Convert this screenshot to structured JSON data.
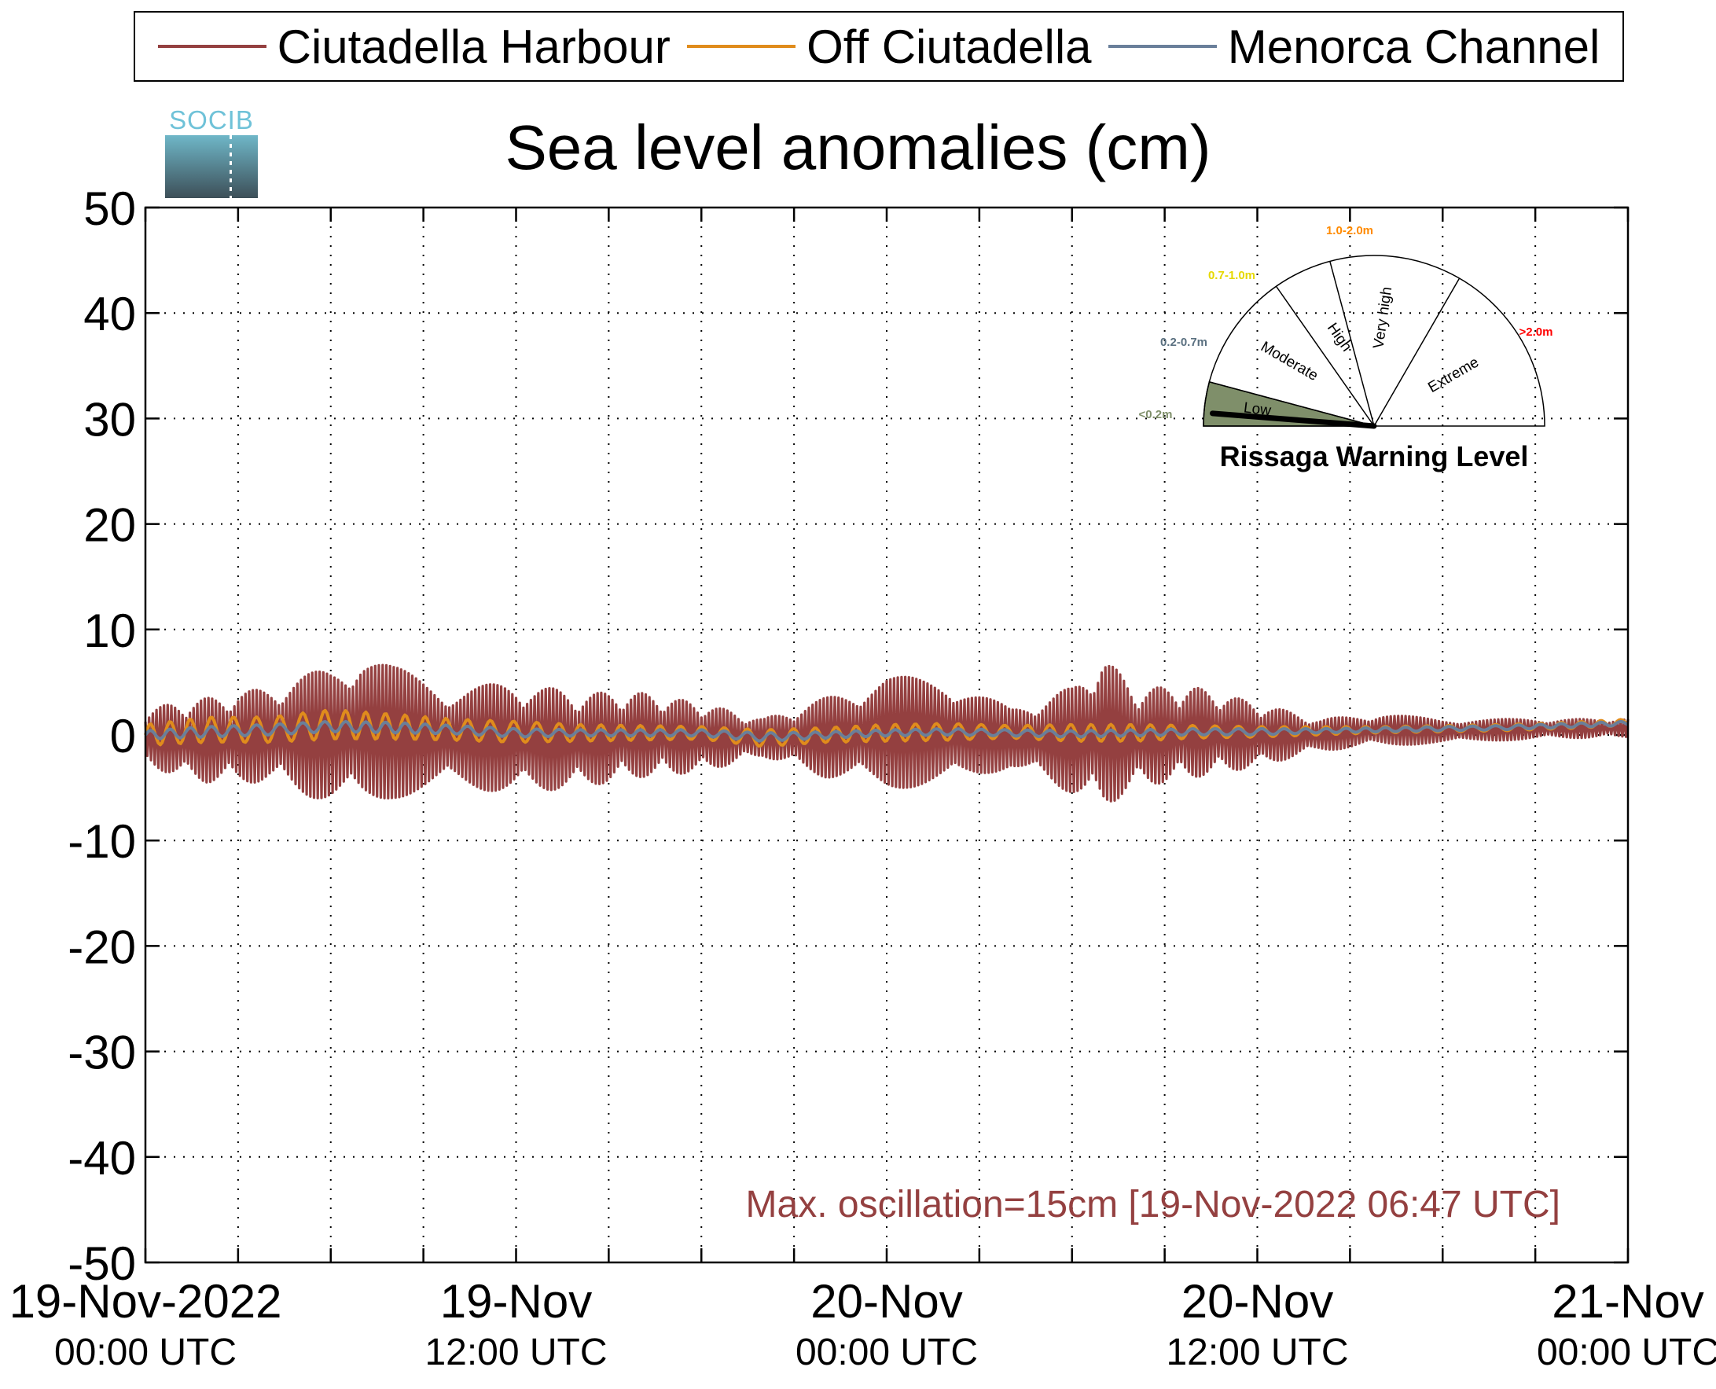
{
  "legend": {
    "items": [
      {
        "label": "Ciutadella Harbour",
        "color": "#944040"
      },
      {
        "label": "Off Ciutadella",
        "color": "#e08c1c"
      },
      {
        "label": "Menorca Channel",
        "color": "#6a7f9a"
      }
    ]
  },
  "logo": {
    "text": "SOCIB"
  },
  "annotation": {
    "text": "Max. oscillation=15cm [19-Nov-2022 06:47 UTC]",
    "color": "#944040"
  },
  "gauge": {
    "title": "Rissaga Warning Level",
    "current_level": "Low",
    "levels": [
      {
        "name": "Low",
        "range": "<0.2m",
        "color": "#7f8f6a"
      },
      {
        "name": "Moderate",
        "range": "0.2-0.7m",
        "color": "#5a7080"
      },
      {
        "name": "High",
        "range": "0.7-1.0m",
        "color": "#e6d800"
      },
      {
        "name": "Very high",
        "range": "1.0-2.0m",
        "color": "#ff8a00"
      },
      {
        "name": "Extreme",
        "range": ">2.0m",
        "color": "#ff0000"
      }
    ]
  },
  "chart_data": {
    "type": "line",
    "title": "Sea level anomalies (cm)",
    "xlabel": "",
    "ylabel": "",
    "ylim": [
      -50,
      50
    ],
    "yticks": [
      "50",
      "40",
      "30",
      "20",
      "10",
      "0",
      "-10",
      "-20",
      "-30",
      "-40",
      "-50"
    ],
    "xlim": [
      "19-Nov-2022 00:00 UTC",
      "21-Nov-2022 00:00 UTC"
    ],
    "xtick_labels": [
      {
        "line1": "19-Nov-2022",
        "line2": "00:00 UTC"
      },
      {
        "line1": "19-Nov",
        "line2": "12:00 UTC"
      },
      {
        "line1": "20-Nov",
        "line2": "00:00 UTC"
      },
      {
        "line1": "20-Nov",
        "line2": "12:00 UTC"
      },
      {
        "line1": "21-Nov",
        "line2": "00:00 UTC"
      }
    ],
    "grid": true,
    "legend_position": "top",
    "series": [
      {
        "name": "Ciutadella Harbour",
        "color": "#944040",
        "x": [
          "19-Nov 00:00",
          "19-Nov 02:00",
          "19-Nov 04:00",
          "19-Nov 06:00",
          "19-Nov 07:00",
          "19-Nov 08:00",
          "19-Nov 10:00",
          "19-Nov 12:00",
          "19-Nov 14:00",
          "19-Nov 16:00",
          "19-Nov 18:00",
          "19-Nov 20:00",
          "19-Nov 22:00",
          "20-Nov 00:00",
          "20-Nov 02:00",
          "20-Nov 04:00",
          "20-Nov 06:00",
          "20-Nov 07:00",
          "20-Nov 08:00",
          "20-Nov 10:00",
          "20-Nov 12:00",
          "20-Nov 14:00",
          "20-Nov 16:00",
          "20-Nov 18:00",
          "20-Nov 20:00",
          "20-Nov 22:00",
          "21-Nov 00:00"
        ],
        "upper": [
          2.5,
          3.5,
          4.5,
          6.5,
          8,
          6.5,
          4.5,
          5,
          4,
          4,
          3,
          1.5,
          3.5,
          5.5,
          5.5,
          2.5,
          4.5,
          7.5,
          4.5,
          4.5,
          3,
          1.5,
          2,
          1.5,
          1.5,
          1.5,
          1.5
        ],
        "lower": [
          -3,
          -4.5,
          -4.5,
          -6.5,
          -7,
          -6,
          -5,
          -5.5,
          -5,
          -4,
          -3.5,
          -2,
          -4,
          -5,
          -5,
          -3,
          -5.5,
          -7,
          -5,
          -4,
          -3,
          -1.5,
          -1,
          -0.8,
          -0.5,
          -0.3,
          -0.2
        ]
      },
      {
        "name": "Off Ciutadella",
        "color": "#e08c1c",
        "x": [
          "19-Nov 00:00",
          "19-Nov 02:00",
          "19-Nov 04:00",
          "19-Nov 06:00",
          "19-Nov 08:00",
          "19-Nov 10:00",
          "19-Nov 12:00",
          "19-Nov 14:00",
          "19-Nov 16:00",
          "19-Nov 18:00",
          "19-Nov 20:00",
          "19-Nov 22:00",
          "20-Nov 00:00",
          "20-Nov 02:00",
          "20-Nov 04:00",
          "20-Nov 06:00",
          "20-Nov 08:00",
          "20-Nov 10:00",
          "20-Nov 12:00",
          "20-Nov 14:00",
          "20-Nov 16:00",
          "20-Nov 18:00",
          "20-Nov 20:00",
          "20-Nov 22:00",
          "21-Nov 00:00"
        ],
        "center": [
          0,
          0.5,
          0.5,
          1,
          0.8,
          0.5,
          0.3,
          0.2,
          0.2,
          0.2,
          -0.3,
          0,
          0.2,
          0.3,
          0.3,
          0.2,
          0.2,
          0.3,
          0.3,
          0.4,
          0.5,
          0.6,
          0.7,
          0.9,
          1.2
        ],
        "amplitude": [
          1,
          1.2,
          1.2,
          1.4,
          1.2,
          1,
          1,
          0.8,
          0.7,
          0.6,
          0.8,
          0.7,
          0.8,
          0.8,
          0.6,
          0.8,
          0.8,
          0.6,
          0.5,
          0.4,
          0.3,
          0.3,
          0.3,
          0.3,
          0.3
        ]
      },
      {
        "name": "Menorca Channel",
        "color": "#6a7f9a",
        "x": [
          "19-Nov 00:00",
          "19-Nov 02:00",
          "19-Nov 04:00",
          "19-Nov 06:00",
          "19-Nov 08:00",
          "19-Nov 10:00",
          "19-Nov 12:00",
          "19-Nov 14:00",
          "19-Nov 16:00",
          "19-Nov 18:00",
          "19-Nov 20:00",
          "19-Nov 22:00",
          "20-Nov 00:00",
          "20-Nov 02:00",
          "20-Nov 04:00",
          "20-Nov 06:00",
          "20-Nov 08:00",
          "20-Nov 10:00",
          "20-Nov 12:00",
          "20-Nov 14:00",
          "20-Nov 16:00",
          "20-Nov 18:00",
          "20-Nov 20:00",
          "20-Nov 22:00",
          "21-Nov 00:00"
        ],
        "center": [
          0,
          0.3,
          0.5,
          0.8,
          0.7,
          0.5,
          0.2,
          0.2,
          0.2,
          0.2,
          -0.2,
          0,
          0.2,
          0.3,
          0.2,
          0.1,
          0.2,
          0.3,
          0.3,
          0.4,
          0.5,
          0.6,
          0.7,
          0.9,
          1.1
        ],
        "amplitude": [
          0.4,
          0.5,
          0.5,
          0.5,
          0.5,
          0.4,
          0.4,
          0.3,
          0.3,
          0.3,
          0.4,
          0.3,
          0.3,
          0.3,
          0.3,
          0.3,
          0.3,
          0.3,
          0.3,
          0.2,
          0.2,
          0.2,
          0.2,
          0.2,
          0.2
        ]
      }
    ]
  }
}
